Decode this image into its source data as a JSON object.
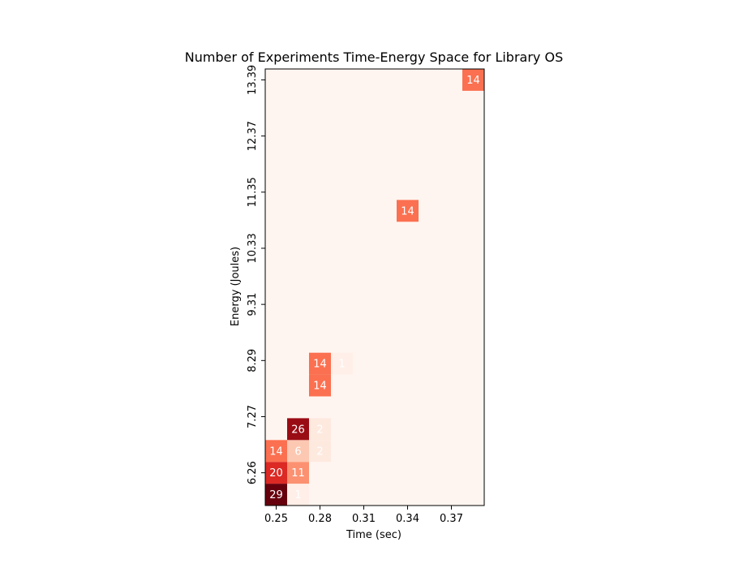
{
  "chart_data": {
    "type": "heatmap",
    "title": "Number of Experiments Time-Energy Space for Library OS",
    "xlabel": "Time (sec)",
    "ylabel": "Energy (Joules)",
    "x_ticks": [
      "0.25",
      "0.28",
      "0.31",
      "0.34",
      "0.37"
    ],
    "y_ticks": [
      "6.26",
      "7.27",
      "8.29",
      "9.31",
      "10.33",
      "11.35",
      "12.37",
      "13.39"
    ],
    "n_cols": 10,
    "n_rows": 20,
    "colormap": "Reds",
    "vmax": 29,
    "cells": [
      {
        "col": 0,
        "row": 0,
        "value": 29
      },
      {
        "col": 1,
        "row": 0,
        "value": 1
      },
      {
        "col": 0,
        "row": 1,
        "value": 20
      },
      {
        "col": 1,
        "row": 1,
        "value": 11
      },
      {
        "col": 0,
        "row": 2,
        "value": 14
      },
      {
        "col": 1,
        "row": 2,
        "value": 6
      },
      {
        "col": 2,
        "row": 2,
        "value": 2
      },
      {
        "col": 1,
        "row": 3,
        "value": 26
      },
      {
        "col": 2,
        "row": 3,
        "value": 2
      },
      {
        "col": 2,
        "row": 5,
        "value": 14
      },
      {
        "col": 2,
        "row": 6,
        "value": 14
      },
      {
        "col": 3,
        "row": 6,
        "value": 1
      },
      {
        "col": 6,
        "row": 13,
        "value": 14
      },
      {
        "col": 9,
        "row": 19,
        "value": 14
      }
    ]
  }
}
